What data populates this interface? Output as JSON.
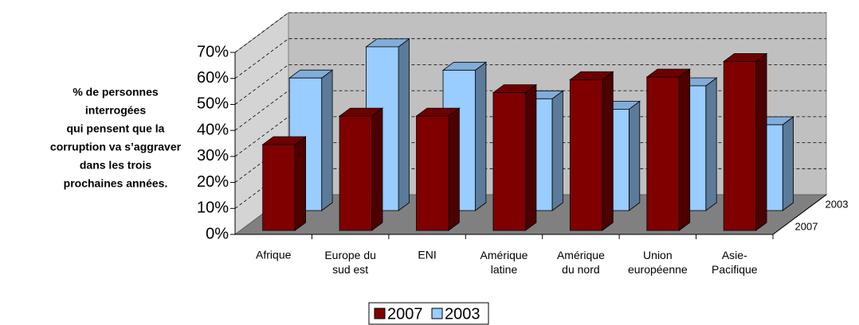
{
  "chart_data": {
    "type": "bar3d",
    "ylabel": [
      "% de personnes",
      "interrogées",
      "qui pensent que la",
      "corruption va s’aggraver",
      "dans les trois",
      "prochaines années."
    ],
    "categories": [
      "Afrique",
      "Europe du\nsud est",
      "ENI",
      "Amérique\nlatine",
      "Amérique\ndu nord",
      "Union\neuropéenne",
      "Asie-\nPacifique"
    ],
    "series": [
      {
        "name": "2007",
        "color": "#800000",
        "values": [
          33,
          44,
          44,
          53,
          58,
          59,
          65
        ]
      },
      {
        "name": "2003",
        "color": "#99ccff",
        "values": [
          51,
          63,
          54,
          43,
          39,
          48,
          33
        ]
      }
    ],
    "ylim": [
      0,
      70
    ],
    "yticks": [
      {
        "value": 0,
        "label": "0%"
      },
      {
        "value": 10,
        "label": "10%"
      },
      {
        "value": 20,
        "label": "20%"
      },
      {
        "value": 30,
        "label": "30%"
      },
      {
        "value": 40,
        "label": "40%"
      },
      {
        "value": 50,
        "label": "50%"
      },
      {
        "value": 60,
        "label": "60%"
      },
      {
        "value": 70,
        "label": "70%"
      }
    ],
    "grid": true,
    "legend": "bottom"
  }
}
